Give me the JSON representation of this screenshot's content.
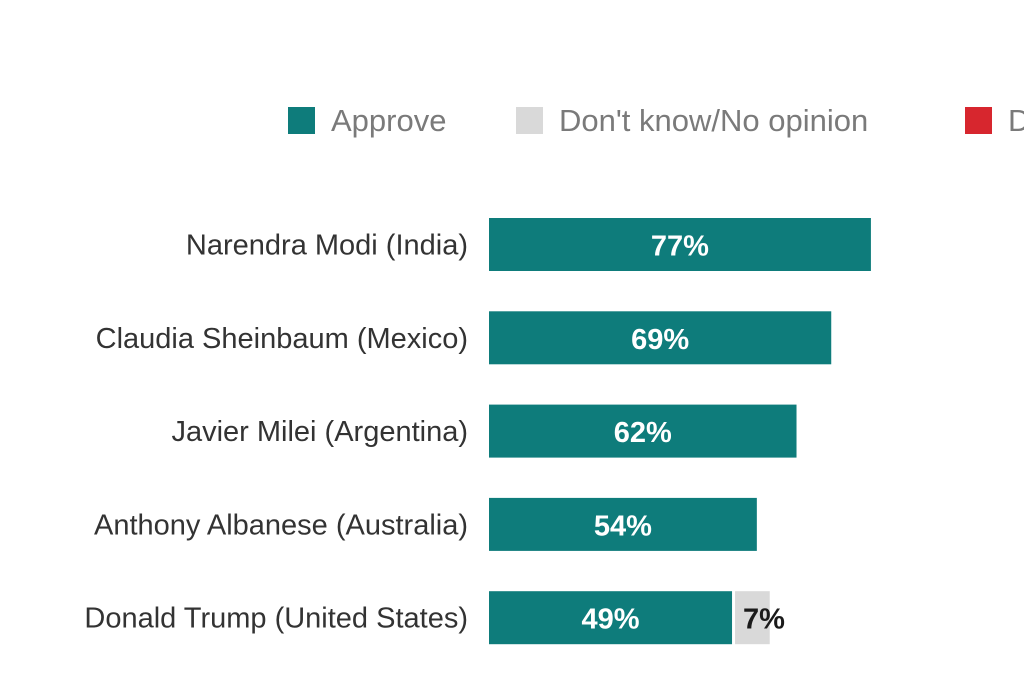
{
  "chart_data": {
    "type": "bar",
    "orientation": "horizontal",
    "stacked": true,
    "legend": {
      "placement": "top",
      "entries": [
        {
          "name": "Approve",
          "color": "#0e7c7b"
        },
        {
          "name": "Don't know/No opinion",
          "color": "#d9d9d9"
        },
        {
          "name": "D",
          "color": "#d7262e"
        }
      ]
    },
    "categories": [
      "Narendra Modi (India)",
      "Claudia Sheinbaum (Mexico)",
      "Javier Milei (Argentina)",
      "Anthony Albanese (Australia)",
      "Donald Trump (United States)"
    ],
    "series": [
      {
        "name": "Approve",
        "color": "#0e7c7b",
        "values": [
          77,
          69,
          62,
          54,
          49
        ],
        "labels": [
          "77%",
          "69%",
          "62%",
          "54%",
          "49%"
        ]
      },
      {
        "name": "Don't know/No opinion",
        "color": "#d9d9d9",
        "values": [
          null,
          null,
          null,
          null,
          7
        ],
        "labels": [
          "",
          "",
          "",
          "",
          "7%"
        ]
      }
    ],
    "xlim": [
      0,
      100
    ],
    "grid": false
  }
}
